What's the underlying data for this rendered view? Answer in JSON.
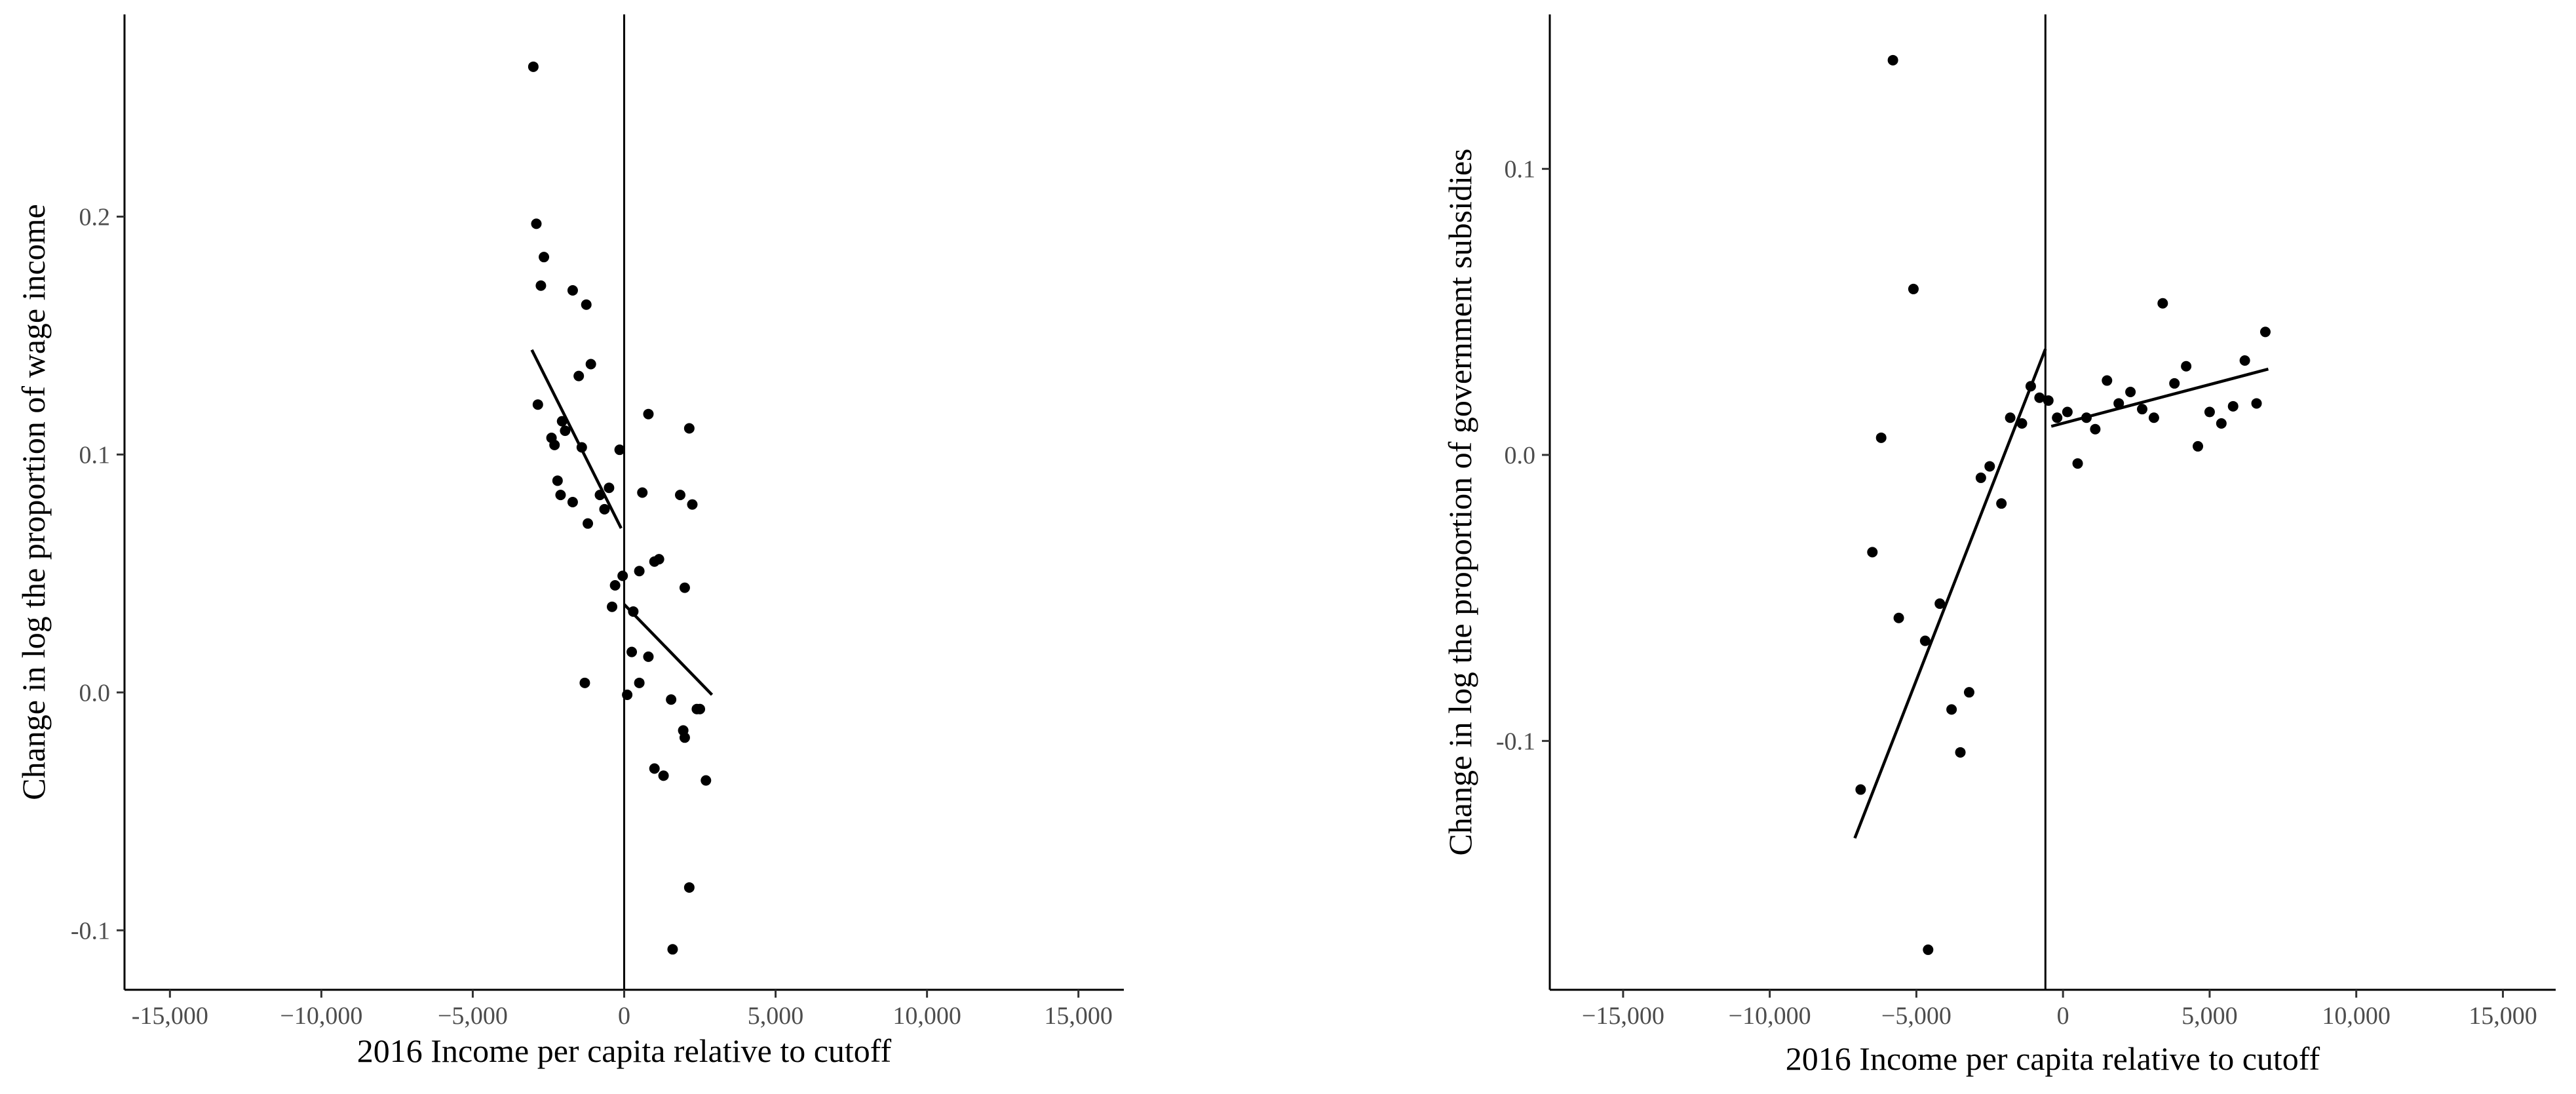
{
  "chart_data": [
    {
      "type": "scatter",
      "xlabel": "2016 Income per capita relative to cutoff",
      "ylabel": "Change in log the proportion of wage income",
      "xlim": [
        -16500,
        16500
      ],
      "ylim": [
        -0.125,
        0.285
      ],
      "xticks": [
        -15000,
        -10000,
        -5000,
        0,
        5000,
        10000,
        15000
      ],
      "xtick_labels": [
        "-15,000",
        "−10,000",
        "−5,000",
        "0",
        "5,000",
        "10,000",
        "15,000"
      ],
      "yticks": [
        -0.1,
        0.0,
        0.1,
        0.2
      ],
      "ytick_labels": [
        "-0.1",
        "0.0",
        "0.1",
        "0.2"
      ],
      "cutoff": 0,
      "grid": false,
      "points": [
        [
          -3000,
          0.263
        ],
        [
          -2900,
          0.197
        ],
        [
          -2650,
          0.183
        ],
        [
          -2750,
          0.171
        ],
        [
          -1700,
          0.169
        ],
        [
          -1250,
          0.163
        ],
        [
          -1100,
          0.138
        ],
        [
          -1500,
          0.133
        ],
        [
          -2850,
          0.121
        ],
        [
          -2050,
          0.114
        ],
        [
          -1950,
          0.11
        ],
        [
          -2400,
          0.107
        ],
        [
          -2300,
          0.104
        ],
        [
          -1400,
          0.103
        ],
        [
          -150,
          0.102
        ],
        [
          -2200,
          0.089
        ],
        [
          -500,
          0.086
        ],
        [
          -800,
          0.083
        ],
        [
          -2100,
          0.083
        ],
        [
          -1700,
          0.08
        ],
        [
          -650,
          0.077
        ],
        [
          -1200,
          0.071
        ],
        [
          -300,
          0.045
        ],
        [
          -50,
          0.049
        ],
        [
          -400,
          0.036
        ],
        [
          -1300,
          0.004
        ],
        [
          800,
          0.117
        ],
        [
          2150,
          0.111
        ],
        [
          600,
          0.084
        ],
        [
          1850,
          0.083
        ],
        [
          2250,
          0.079
        ],
        [
          1150,
          0.056
        ],
        [
          1000,
          0.055
        ],
        [
          500,
          0.051
        ],
        [
          2000,
          0.044
        ],
        [
          300,
          0.034
        ],
        [
          250,
          0.017
        ],
        [
          800,
          0.015
        ],
        [
          500,
          0.004
        ],
        [
          100,
          -0.001
        ],
        [
          1550,
          -0.003
        ],
        [
          2500,
          -0.007
        ],
        [
          2400,
          -0.007
        ],
        [
          1950,
          -0.016
        ],
        [
          2000,
          -0.019
        ],
        [
          1000,
          -0.032
        ],
        [
          1300,
          -0.035
        ],
        [
          2700,
          -0.037
        ],
        [
          2150,
          -0.082
        ],
        [
          1600,
          -0.108
        ]
      ],
      "fit_segments": [
        {
          "x": [
            -3050,
            -100
          ],
          "y": [
            0.144,
            0.069
          ]
        },
        {
          "x": [
            0,
            2900
          ],
          "y": [
            0.037,
            -0.001
          ]
        }
      ]
    },
    {
      "type": "scatter",
      "xlabel": "2016 Income per capita relative to cutoff",
      "ylabel": "Change in log the proportion of government subsidies",
      "xlim": [
        -17500,
        16800
      ],
      "ylim": [
        -0.187,
        0.154
      ],
      "xticks": [
        -15000,
        -10000,
        -5000,
        0,
        5000,
        10000,
        15000
      ],
      "xtick_labels": [
        "−15,000",
        "−10,000",
        "−5,000",
        "0",
        "5,000",
        "10,000",
        "15,000"
      ],
      "yticks": [
        -0.1,
        0.0,
        0.1
      ],
      "ytick_labels": [
        "-0.1",
        "0.0",
        "0.1"
      ],
      "cutoff": -600,
      "grid": false,
      "points": [
        [
          -5800,
          0.138
        ],
        [
          -5100,
          0.058
        ],
        [
          -6200,
          0.006
        ],
        [
          -6500,
          -0.034
        ],
        [
          -5600,
          -0.057
        ],
        [
          -4200,
          -0.052
        ],
        [
          -4700,
          -0.065
        ],
        [
          -3800,
          -0.089
        ],
        [
          -3200,
          -0.083
        ],
        [
          -3500,
          -0.104
        ],
        [
          -6900,
          -0.117
        ],
        [
          -4600,
          -0.173
        ],
        [
          -2800,
          -0.008
        ],
        [
          -2500,
          -0.004
        ],
        [
          -2100,
          -0.017
        ],
        [
          -1800,
          0.013
        ],
        [
          -1400,
          0.011
        ],
        [
          -1100,
          0.024
        ],
        [
          -800,
          0.02
        ],
        [
          -500,
          0.019
        ],
        [
          -200,
          0.013
        ],
        [
          150,
          0.015
        ],
        [
          500,
          -0.003
        ],
        [
          800,
          0.013
        ],
        [
          1100,
          0.009
        ],
        [
          1500,
          0.026
        ],
        [
          1900,
          0.018
        ],
        [
          2300,
          0.022
        ],
        [
          2700,
          0.016
        ],
        [
          3100,
          0.013
        ],
        [
          3400,
          0.053
        ],
        [
          3800,
          0.025
        ],
        [
          4200,
          0.031
        ],
        [
          4600,
          0.003
        ],
        [
          5000,
          0.015
        ],
        [
          5400,
          0.011
        ],
        [
          5800,
          0.017
        ],
        [
          6200,
          0.033
        ],
        [
          6600,
          0.018
        ],
        [
          6900,
          0.043
        ]
      ],
      "fit_segments": [
        {
          "x": [
            -7100,
            -600
          ],
          "y": [
            -0.134,
            0.037
          ]
        },
        {
          "x": [
            -400,
            7000
          ],
          "y": [
            0.01,
            0.03
          ]
        }
      ]
    }
  ]
}
